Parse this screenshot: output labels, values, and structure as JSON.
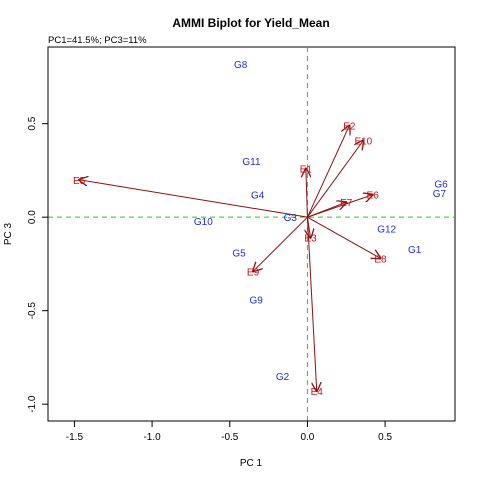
{
  "chart_data": {
    "type": "scatter",
    "title": "AMMI Biplot for Yield_Mean",
    "subtitle": "PC1=41.5%; PC3=11%",
    "xlabel": "PC 1",
    "ylabel": "PC 3",
    "xlim": [
      -1.67,
      0.95
    ],
    "ylim": [
      -1.09,
      0.91
    ],
    "xticks": [
      -1.5,
      -1.0,
      -0.5,
      0.0,
      0.5
    ],
    "xtick_labels": [
      "-1.5",
      "-1.0",
      "-0.5",
      "0.0",
      "0.5"
    ],
    "yticks": [
      -1.0,
      -0.5,
      0.0,
      0.5
    ],
    "ytick_labels": [
      "-1.0",
      "-0.5",
      "0.0",
      "0.5"
    ],
    "reference_lines": {
      "x": 0,
      "y": 0,
      "color": "#22cc22",
      "style": "dashed"
    },
    "genotypes": {
      "color": "#1f2fd6",
      "points": [
        {
          "label": "G1",
          "x": 0.69,
          "y": -0.17
        },
        {
          "label": "G2",
          "x": -0.16,
          "y": -0.85
        },
        {
          "label": "G3",
          "x": -0.11,
          "y": 0.0
        },
        {
          "label": "G4",
          "x": -0.32,
          "y": 0.12
        },
        {
          "label": "G5",
          "x": -0.44,
          "y": -0.19
        },
        {
          "label": "G6",
          "x": 0.86,
          "y": 0.18
        },
        {
          "label": "G7",
          "x": 0.85,
          "y": 0.13
        },
        {
          "label": "G8",
          "x": -0.43,
          "y": 0.82
        },
        {
          "label": "G9",
          "x": -0.33,
          "y": -0.44
        },
        {
          "label": "G10",
          "x": -0.67,
          "y": -0.02
        },
        {
          "label": "G11",
          "x": -0.36,
          "y": 0.3
        },
        {
          "label": "G12",
          "x": 0.51,
          "y": -0.06
        }
      ]
    },
    "environments": {
      "color": "#cc1111",
      "vector_color": "#8b1010",
      "points": [
        {
          "label": "E1",
          "x": -0.01,
          "y": 0.26
        },
        {
          "label": "E2",
          "x": 0.27,
          "y": 0.49
        },
        {
          "label": "E3",
          "x": 0.02,
          "y": -0.11
        },
        {
          "label": "E4",
          "x": 0.06,
          "y": -0.93
        },
        {
          "label": "E5",
          "x": -1.47,
          "y": 0.2
        },
        {
          "label": "E6",
          "x": 0.42,
          "y": 0.12
        },
        {
          "label": "E7",
          "x": 0.25,
          "y": 0.08
        },
        {
          "label": "E8",
          "x": 0.47,
          "y": -0.22
        },
        {
          "label": "E9",
          "x": -0.35,
          "y": -0.29
        },
        {
          "label": "E10",
          "x": 0.36,
          "y": 0.41
        }
      ]
    }
  }
}
